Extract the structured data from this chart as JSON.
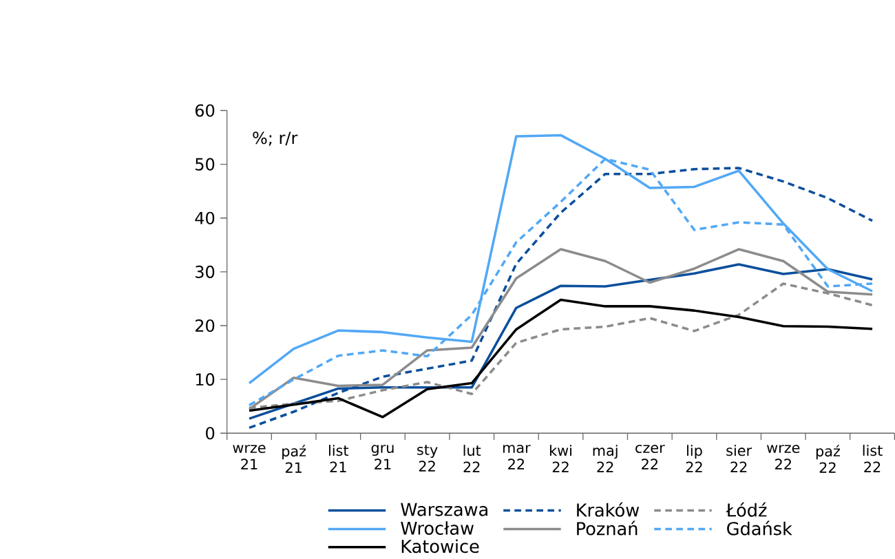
{
  "chart_data": {
    "type": "line",
    "categories": [
      "wrze 21",
      "paź 21",
      "list 21",
      "gru 21",
      "sty 22",
      "lut 22",
      "mar 22",
      "kwi 22",
      "maj 22",
      "czer 22",
      "lip 22",
      "sier 22",
      "wrze 22",
      "paź 22",
      "list 22"
    ],
    "ylim": [
      0,
      60
    ],
    "yticks": [
      0,
      10,
      20,
      30,
      40,
      50,
      60
    ],
    "annotations": [
      "%; r/r"
    ],
    "legend": "bottom",
    "series": [
      {
        "name": "Warszawa",
        "color": "#0b4f9c",
        "line_style": "solid",
        "values": [
          2.7,
          5.5,
          8.3,
          8.5,
          8.5,
          8.5,
          23.3,
          27.4,
          27.3,
          28.5,
          29.7,
          31.4,
          29.6,
          30.5,
          28.6
        ]
      },
      {
        "name": "Kraków",
        "color": "#0b4f9c",
        "line_style": "dashed",
        "values": [
          1.0,
          4.0,
          7.5,
          10.5,
          12.0,
          13.5,
          31.5,
          41.0,
          48.2,
          48.2,
          49.1,
          49.3,
          46.8,
          43.7,
          39.5
        ]
      },
      {
        "name": "Łódź",
        "color": "#8c8c8c",
        "line_style": "dashed",
        "values": [
          4.7,
          5.5,
          6.0,
          8.0,
          9.5,
          7.3,
          16.8,
          19.3,
          19.8,
          21.4,
          19.0,
          22.0,
          27.8,
          26.0,
          23.8
        ]
      },
      {
        "name": "Wrocław",
        "color": "#52a8f5",
        "line_style": "solid",
        "values": [
          9.3,
          15.7,
          19.1,
          18.8,
          17.8,
          17.0,
          55.2,
          55.4,
          51.0,
          45.6,
          45.8,
          48.8,
          39.0,
          30.5,
          26.4
        ]
      },
      {
        "name": "Poznań",
        "color": "#8c8c8c",
        "line_style": "solid",
        "values": [
          4.5,
          10.3,
          8.8,
          9.0,
          15.4,
          15.9,
          28.8,
          34.2,
          32.0,
          28.0,
          30.6,
          34.2,
          32.0,
          26.3,
          25.8
        ]
      },
      {
        "name": "Gdańsk",
        "color": "#52a8f5",
        "line_style": "dashed",
        "values": [
          5.2,
          10.0,
          14.4,
          15.4,
          14.3,
          22.0,
          35.5,
          43.0,
          51.0,
          49.0,
          37.8,
          39.2,
          38.8,
          27.3,
          27.8
        ]
      },
      {
        "name": "Katowice",
        "color": "#000000",
        "line_style": "solid",
        "values": [
          4.2,
          5.3,
          6.5,
          3.0,
          8.2,
          9.3,
          19.3,
          24.8,
          23.6,
          23.6,
          22.8,
          21.6,
          19.9,
          19.8,
          19.4
        ]
      }
    ]
  }
}
